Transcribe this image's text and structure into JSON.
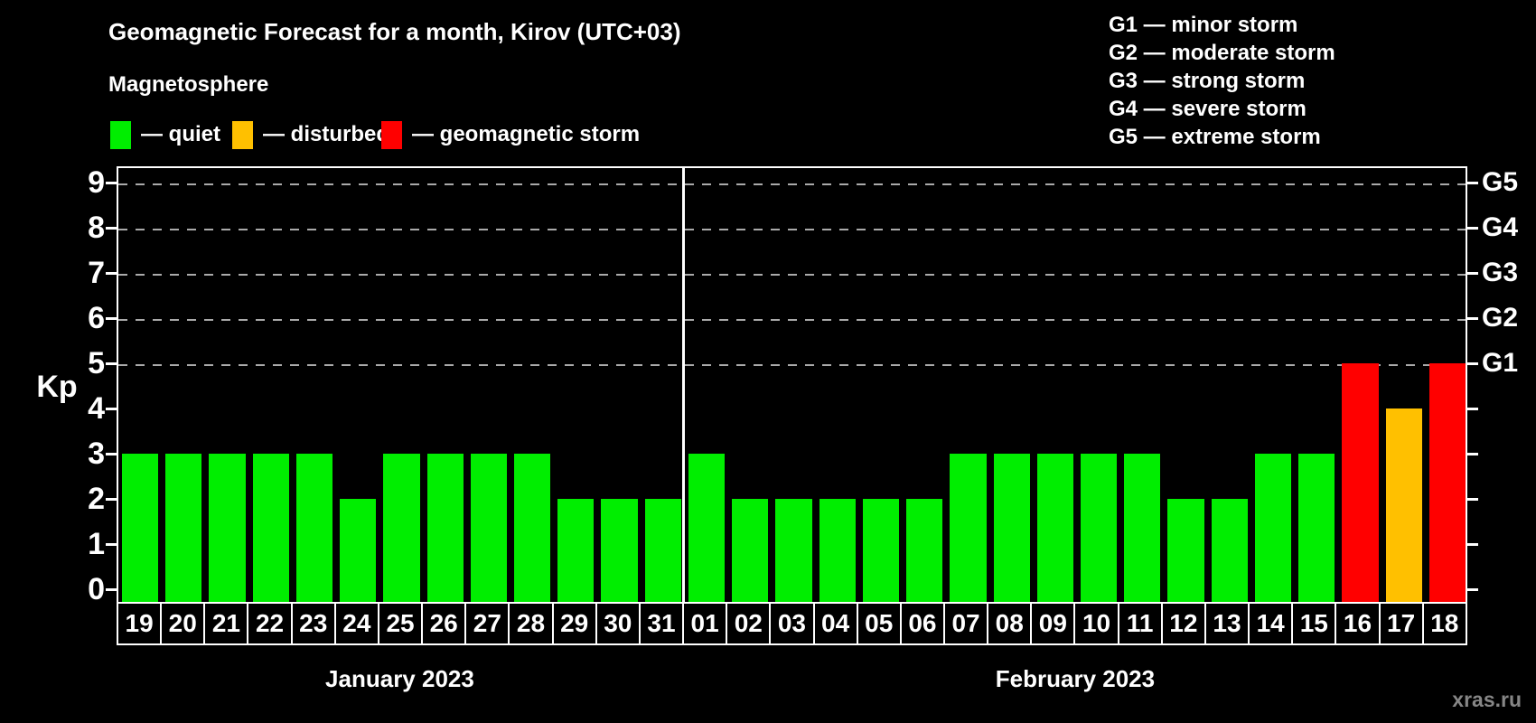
{
  "header": {
    "subtitle": "Magnetosphere"
  },
  "legend": {
    "items": [
      {
        "name": "quiet",
        "label": "— quiet",
        "color": "#00ee00",
        "x": 122
      },
      {
        "name": "disturbed",
        "label": "— disturbed",
        "color": "#ffc000",
        "x": 257
      },
      {
        "name": "storm",
        "label": "— geomagnetic storm",
        "color": "#ff0000",
        "x": 422
      }
    ]
  },
  "g_legend": {
    "lines": [
      "G1 — minor storm",
      "G2 — moderate storm",
      "G3 — strong storm",
      "G4 — severe storm",
      "G5 — extreme storm"
    ]
  },
  "watermark": "xras.ru",
  "chart_data": {
    "type": "bar",
    "title": "Geomagnetic Forecast for a month, Kirov (UTC+03)",
    "ylabel": "Kp",
    "ylim": [
      0,
      9
    ],
    "yticks": [
      0,
      1,
      2,
      3,
      4,
      5,
      6,
      7,
      8,
      9
    ],
    "gridlines_at_kp": [
      5,
      6,
      7,
      8,
      9
    ],
    "grid": "dashed horizontal at storm levels only",
    "legend_position": "top",
    "right_axis_labels": [
      {
        "label": "G1",
        "kp": 5
      },
      {
        "label": "G2",
        "kp": 6
      },
      {
        "label": "G3",
        "kp": 7
      },
      {
        "label": "G4",
        "kp": 8
      },
      {
        "label": "G5",
        "kp": 9
      }
    ],
    "colors": {
      "quiet": "#00ee00",
      "disturbed": "#ffc000",
      "storm": "#ff0000"
    },
    "color_rules": "kp <= 3 quiet (green), kp = 4 disturbed (orange), kp >= 5 storm (red)",
    "months": [
      {
        "label": "January 2023",
        "days": [
          "19",
          "20",
          "21",
          "22",
          "23",
          "24",
          "25",
          "26",
          "27",
          "28",
          "29",
          "30",
          "31"
        ],
        "kp": [
          3,
          3,
          3,
          3,
          3,
          2,
          3,
          3,
          3,
          3,
          2,
          2,
          2
        ]
      },
      {
        "label": "February 2023",
        "days": [
          "01",
          "02",
          "03",
          "04",
          "05",
          "06",
          "07",
          "08",
          "09",
          "10",
          "11",
          "12",
          "13",
          "14",
          "15",
          "16",
          "17",
          "18"
        ],
        "kp": [
          3,
          2,
          2,
          2,
          2,
          2,
          3,
          3,
          3,
          3,
          3,
          2,
          2,
          3,
          3,
          5,
          4,
          5
        ]
      }
    ]
  }
}
